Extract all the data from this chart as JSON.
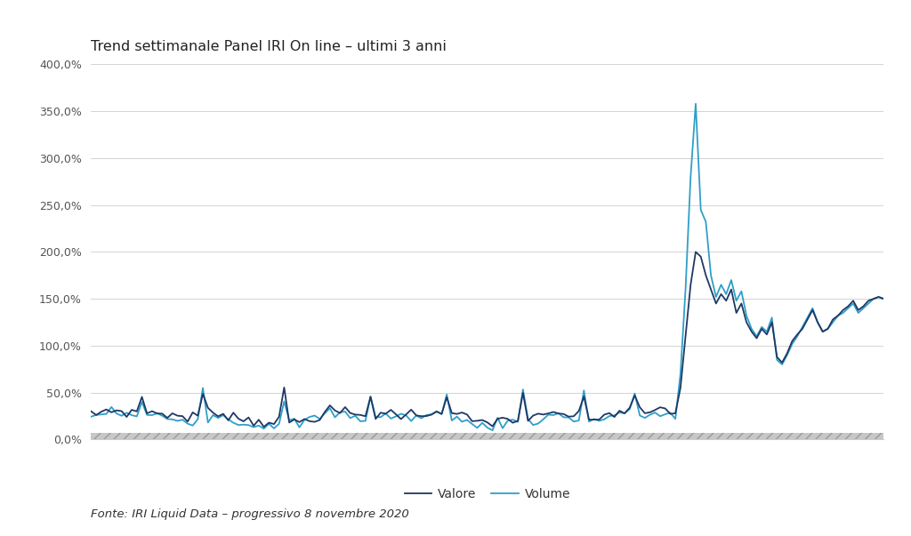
{
  "title": "Trend settimanale Panel IRI On line – ultimi 3 anni",
  "fonte": "Fonte: IRI Liquid Data – progressivo 8 novembre 2020",
  "valore_color": "#1f3864",
  "volume_color": "#2e9fc9",
  "background_color": "#ffffff",
  "plot_bg_color": "#ffffff",
  "grid_color": "#cccccc",
  "ylim": [
    0,
    400
  ],
  "yticks": [
    0,
    50,
    100,
    150,
    200,
    250,
    300,
    350,
    400
  ],
  "legend_labels": [
    "Valore",
    "Volume"
  ],
  "n_points": 157,
  "outer_bg": "#f2f2f2"
}
